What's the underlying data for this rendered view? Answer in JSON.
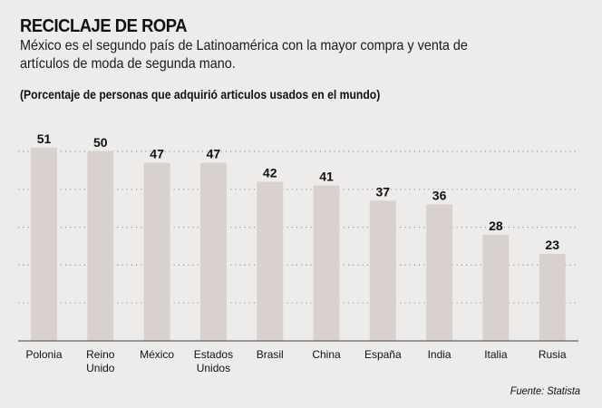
{
  "header": {
    "title": "RECICLAJE DE ROPA",
    "subtitle": "México es el segundo país de Latinoamérica con la mayor compra y venta de artículos de moda de segunda mano.",
    "note": "(Porcentaje de personas que adquirió articulos usados en el mundo)"
  },
  "footer": {
    "source": "Fuente: Statista"
  },
  "colors": {
    "bar": "#d9d1ce",
    "background": "#eeecea",
    "gridline": "#9a9a9a",
    "axis": "#777777"
  },
  "chart_data": {
    "type": "bar",
    "title": "RECICLAJE DE ROPA",
    "subtitle": "(Porcentaje de personas que adquirió articulos usados en el mundo)",
    "categories": [
      [
        "Polonia"
      ],
      [
        "Reino",
        "Unido"
      ],
      [
        "México"
      ],
      [
        "Estados",
        "Unidos"
      ],
      [
        "Brasil"
      ],
      [
        "China"
      ],
      [
        "España"
      ],
      [
        "India"
      ],
      [
        "Italia"
      ],
      [
        "Rusia"
      ]
    ],
    "values": [
      51,
      50,
      47,
      47,
      42,
      41,
      37,
      36,
      28,
      23
    ],
    "xlabel": "",
    "ylabel": "",
    "ylim": [
      0,
      51
    ],
    "gridlines": [
      10,
      20,
      30,
      40,
      50
    ],
    "grid": true,
    "grid_style": "dotted",
    "legend": "none",
    "data_labels": true
  }
}
